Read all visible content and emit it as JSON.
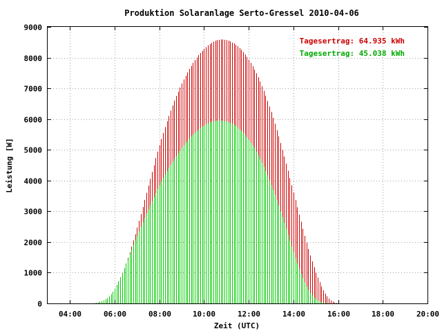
{
  "chart_data": {
    "type": "bar",
    "title": "Produktion Solaranlage Serto-Gressel 2010-04-06",
    "xlabel": "Zeit (UTC)",
    "ylabel": "Leistung [W]",
    "xlim": [
      "03:00",
      "20:00"
    ],
    "ylim": [
      0,
      9000
    ],
    "x_ticks": [
      "04:00",
      "06:00",
      "08:00",
      "10:00",
      "12:00",
      "14:00",
      "16:00",
      "18:00",
      "20:00"
    ],
    "y_ticks": [
      "0",
      "1000",
      "2000",
      "3000",
      "4000",
      "5000",
      "6000",
      "7000",
      "8000",
      "9000"
    ],
    "grid": true,
    "legend_position": "top-right",
    "interval_minutes": 5,
    "series": [
      {
        "legend": "Tagesertrag: 64.935 kWh",
        "color": "#cc0000",
        "start": "05:05",
        "values": [
          10,
          20,
          30,
          50,
          70,
          100,
          130,
          170,
          230,
          300,
          380,
          480,
          600,
          720,
          850,
          990,
          1140,
          1300,
          1480,
          1660,
          1850,
          2050,
          2250,
          2470,
          2690,
          2910,
          3140,
          3370,
          3600,
          3830,
          4050,
          4280,
          4500,
          4730,
          4940,
          5150,
          5350,
          5550,
          5740,
          5930,
          6100,
          6280,
          6440,
          6600,
          6750,
          6890,
          7030,
          7160,
          7290,
          7410,
          7520,
          7630,
          7730,
          7830,
          7920,
          8000,
          8080,
          8150,
          8220,
          8290,
          8340,
          8400,
          8440,
          8480,
          8520,
          8550,
          8570,
          8580,
          8590,
          8590,
          8580,
          8570,
          8550,
          8530,
          8490,
          8460,
          8410,
          8370,
          8310,
          8250,
          8180,
          8100,
          8020,
          7930,
          7830,
          7720,
          7610,
          7490,
          7360,
          7220,
          7070,
          6920,
          6760,
          6590,
          6410,
          6230,
          6040,
          5850,
          5640,
          5440,
          5220,
          5000,
          4780,
          4550,
          4320,
          4080,
          3850,
          3610,
          3370,
          3130,
          2890,
          2660,
          2430,
          2200,
          1980,
          1770,
          1560,
          1370,
          1180,
          1000,
          840,
          690,
          550,
          430,
          320,
          230,
          160,
          100,
          60,
          30,
          15,
          5
        ]
      },
      {
        "legend": "Tagesertrag: 45.038 kWh",
        "color": "#00cc00",
        "start": "05:05",
        "values": [
          10,
          20,
          30,
          50,
          70,
          100,
          130,
          170,
          230,
          300,
          380,
          480,
          600,
          720,
          850,
          990,
          1140,
          1290,
          1440,
          1600,
          1750,
          1900,
          2050,
          2200,
          2350,
          2490,
          2640,
          2780,
          2920,
          3060,
          3200,
          3330,
          3460,
          3590,
          3720,
          3840,
          3960,
          4080,
          4190,
          4300,
          4410,
          4510,
          4610,
          4710,
          4800,
          4890,
          4980,
          5060,
          5140,
          5220,
          5290,
          5360,
          5430,
          5490,
          5550,
          5610,
          5660,
          5710,
          5750,
          5790,
          5830,
          5860,
          5890,
          5910,
          5930,
          5940,
          5950,
          5950,
          5950,
          5940,
          5930,
          5920,
          5900,
          5870,
          5840,
          5810,
          5770,
          5720,
          5670,
          5610,
          5550,
          5480,
          5400,
          5320,
          5230,
          5140,
          5040,
          4930,
          4820,
          4700,
          4580,
          4450,
          4310,
          4170,
          4020,
          3860,
          3700,
          3530,
          3360,
          3180,
          3000,
          2810,
          2620,
          2430,
          2230,
          2040,
          1850,
          1660,
          1480,
          1300,
          1130,
          970,
          820,
          680,
          550,
          440,
          340,
          260,
          190,
          130,
          90,
          60,
          40,
          20,
          10,
          5,
          2,
          0,
          0,
          0,
          0,
          0
        ]
      }
    ]
  }
}
